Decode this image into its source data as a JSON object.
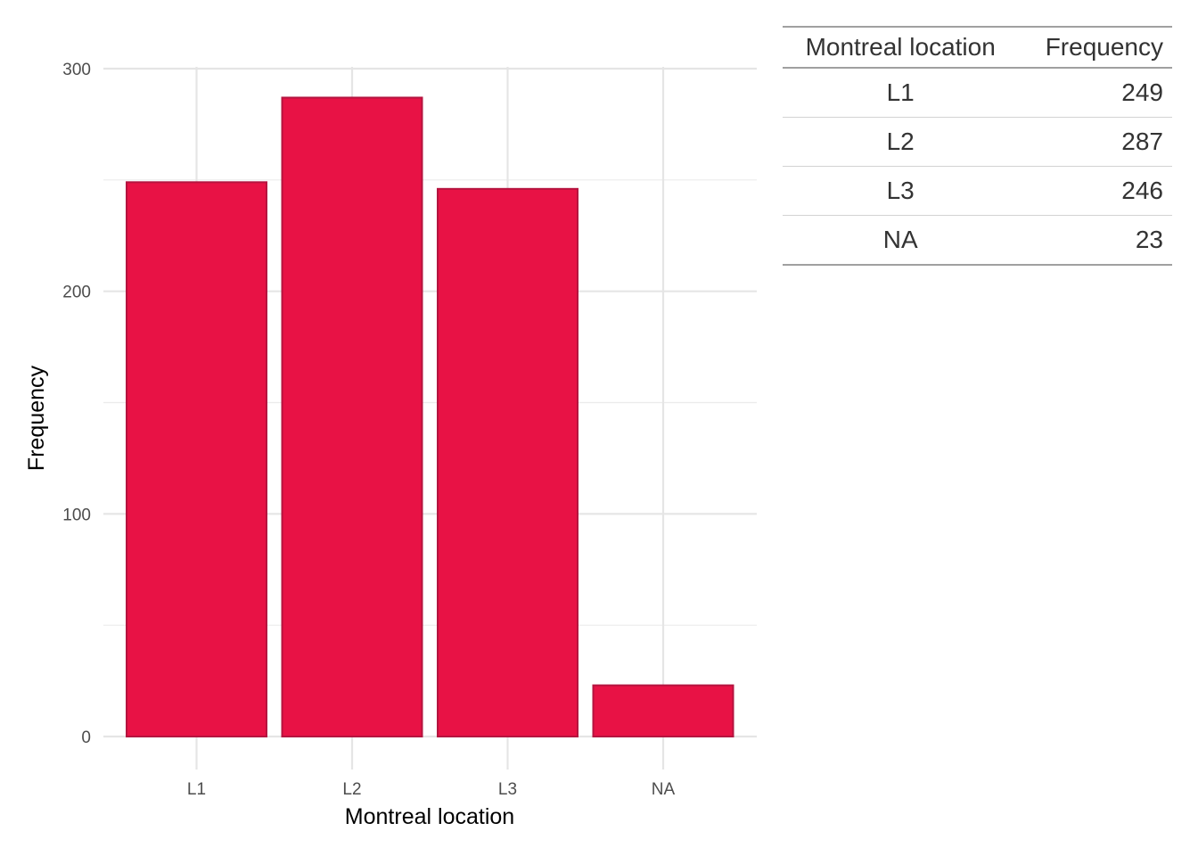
{
  "chart_data": {
    "type": "bar",
    "categories": [
      "L1",
      "L2",
      "L3",
      "NA"
    ],
    "values": [
      249,
      287,
      246,
      23
    ],
    "xlabel": "Montreal location",
    "ylabel": "Frequency",
    "ylim": [
      0,
      300
    ],
    "yticks": [
      0,
      100,
      200,
      300
    ],
    "grid": true,
    "bar_fill": "#e81245",
    "bar_stroke": "#b5143f"
  },
  "table": {
    "headers": [
      "Montreal location",
      "Frequency"
    ],
    "rows": [
      [
        "L1",
        "249"
      ],
      [
        "L2",
        "287"
      ],
      [
        "L3",
        "246"
      ],
      [
        "NA",
        "23"
      ]
    ]
  }
}
